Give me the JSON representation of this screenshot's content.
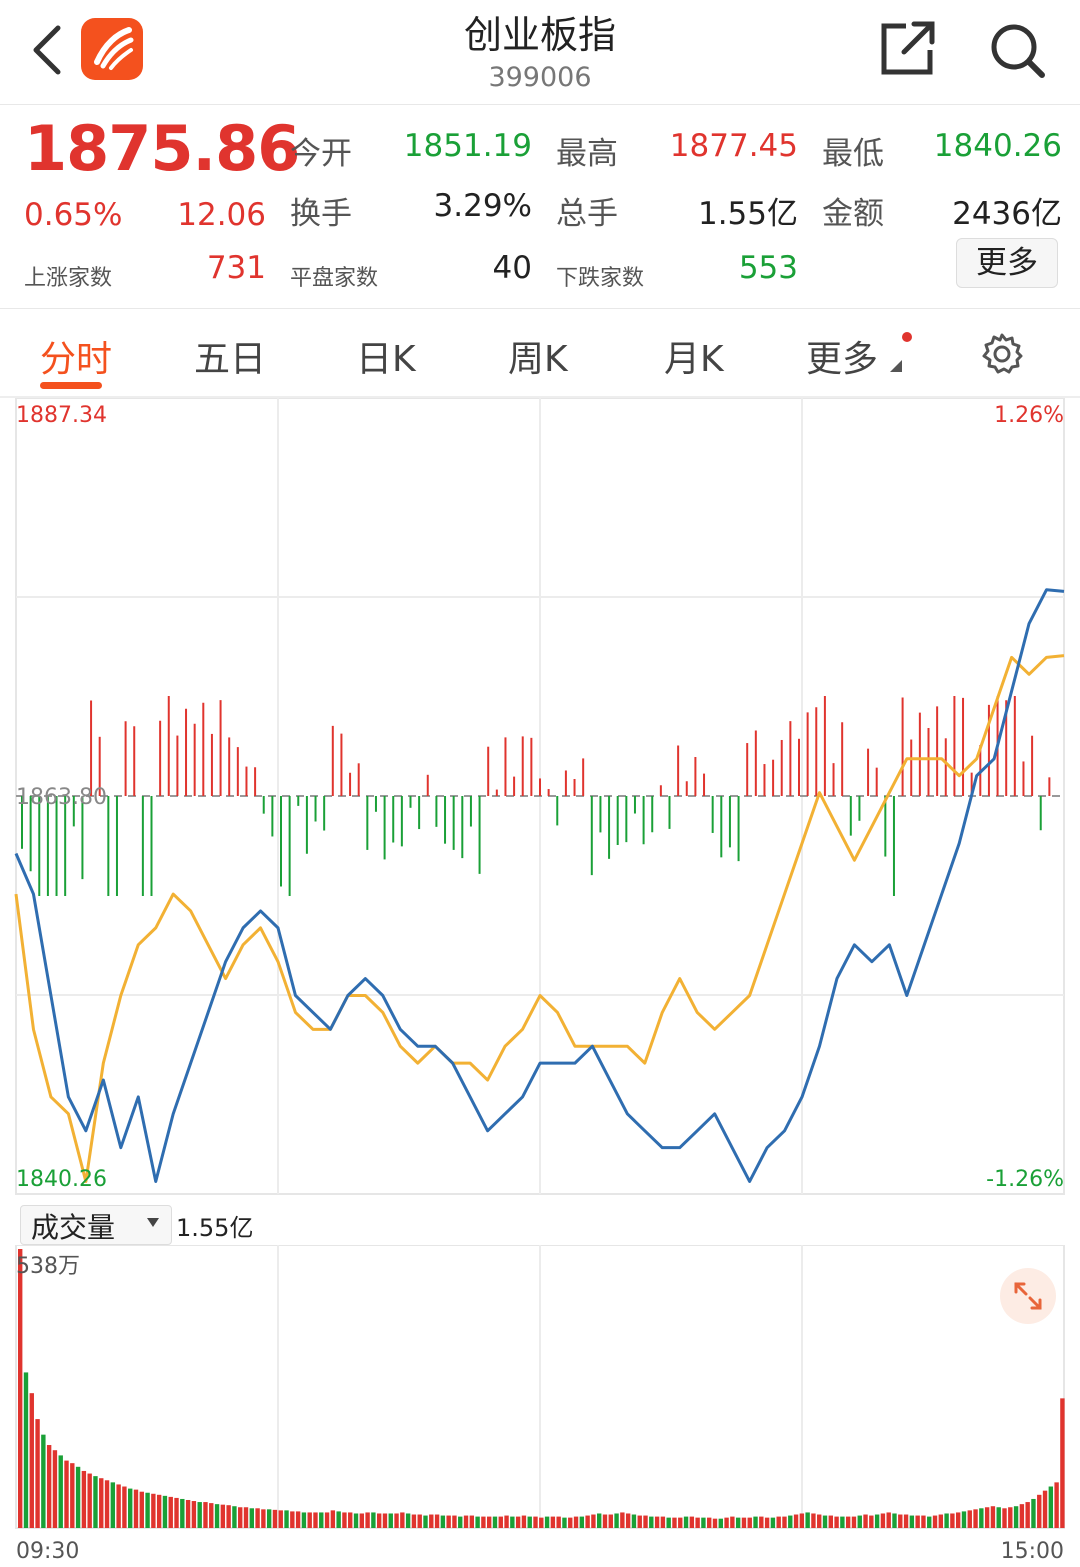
{
  "header": {
    "title": "创业板指",
    "code": "399006"
  },
  "quote": {
    "price": "1875.86",
    "change_pct": "0.65%",
    "change": "12.06",
    "open_label": "今开",
    "open": "1851.19",
    "high_label": "最高",
    "high": "1877.45",
    "low_label": "最低",
    "low": "1840.26",
    "turnover_label": "换手",
    "turnover": "3.29%",
    "total_hands_label": "总手",
    "total_hands": "1.55亿",
    "amount_label": "金额",
    "amount": "2436亿",
    "up_label": "上涨家数",
    "up_count": "731",
    "flat_label": "平盘家数",
    "flat_count": "40",
    "down_label": "下跌家数",
    "down_count": "553",
    "more_label": "更多"
  },
  "tabs": [
    {
      "label": "分时"
    },
    {
      "label": "五日"
    },
    {
      "label": "日K"
    },
    {
      "label": "周K"
    },
    {
      "label": "月K"
    },
    {
      "label": "更多"
    }
  ],
  "colors": {
    "up": "#e0342e",
    "down": "#1aa037",
    "accent": "#f4511e",
    "index_line": "#2f6db0",
    "avg_line": "#f2b134"
  },
  "icons": [
    "back-icon",
    "app-logo-icon",
    "share-icon",
    "search-icon",
    "settings-icon",
    "expand-icon"
  ],
  "chart_data": [
    {
      "type": "line",
      "y_top_label": "1887.34",
      "y_bottom_label": "1840.26",
      "y_mid_label": "1863.80",
      "pct_top_label": "1.26%",
      "pct_bottom_label": "-1.26%",
      "ylim": [
        1840.26,
        1887.34
      ],
      "x": [
        0,
        4,
        8,
        12,
        16,
        20,
        24,
        28,
        32,
        36,
        40,
        44,
        48,
        52,
        56,
        60,
        64,
        68,
        72,
        76,
        80,
        84,
        88,
        92,
        96,
        100,
        104,
        108,
        112,
        116,
        120,
        124,
        128,
        132,
        136,
        140,
        144,
        148,
        152,
        156,
        160,
        164,
        168,
        172,
        176,
        180,
        184,
        188,
        192,
        196,
        200,
        204,
        208,
        212,
        216,
        220,
        224,
        228,
        232,
        236,
        240
      ],
      "series": [
        {
          "values": [
            1860.4,
            1858,
            1852,
            1846,
            1844,
            1847,
            1843,
            1846,
            1841,
            1845,
            1848,
            1851,
            1854,
            1856,
            1857,
            1856,
            1852,
            1851,
            1850,
            1852,
            1853,
            1852,
            1850,
            1849,
            1849,
            1848,
            1846,
            1844,
            1845,
            1846,
            1848,
            1848,
            1848,
            1849,
            1847,
            1845,
            1844,
            1843,
            1843,
            1844,
            1845,
            1843,
            1841,
            1843,
            1844,
            1846,
            1849,
            1853,
            1855,
            1854,
            1855,
            1852,
            1855,
            1858,
            1861,
            1865,
            1866,
            1870,
            1874,
            1876,
            1875.9
          ]
        },
        {
          "values": [
            1858,
            1850,
            1846,
            1845,
            1841,
            1848,
            1852,
            1855,
            1856,
            1858,
            1857,
            1855,
            1853,
            1855,
            1856,
            1854,
            1851,
            1850,
            1850,
            1852,
            1852,
            1851,
            1849,
            1848,
            1849,
            1848,
            1848,
            1847,
            1849,
            1850,
            1852,
            1851,
            1849,
            1849,
            1849,
            1849,
            1848,
            1851,
            1853,
            1851,
            1850,
            1851,
            1852,
            1855,
            1858,
            1861,
            1864,
            1862,
            1860,
            1862,
            1864,
            1866,
            1866,
            1866,
            1865,
            1866,
            1869,
            1872,
            1871,
            1872,
            1872.1
          ]
        }
      ]
    },
    {
      "type": "bar",
      "title": "成交量",
      "value_label": "1.55亿",
      "y_max_label": "538万",
      "ylim": [
        0,
        538
      ],
      "x_start_label": "09:30",
      "x_end_label": "15:00",
      "values": [
        538,
        300,
        260,
        210,
        180,
        160,
        150,
        140,
        130,
        125,
        118,
        110,
        105,
        100,
        96,
        92,
        88,
        84,
        80,
        76,
        74,
        70,
        68,
        66,
        64,
        62,
        60,
        58,
        56,
        54,
        52,
        50,
        50,
        48,
        46,
        45,
        44,
        42,
        40,
        40,
        38,
        38,
        36,
        36,
        35,
        34,
        34,
        32,
        32,
        30,
        30,
        30,
        30,
        30,
        34,
        32,
        30,
        30,
        28,
        28,
        30,
        30,
        28,
        28,
        28,
        28,
        30,
        28,
        26,
        26,
        24,
        26,
        26,
        24,
        24,
        24,
        22,
        24,
        24,
        22,
        22,
        22,
        22,
        22,
        24,
        22,
        22,
        24,
        22,
        22,
        20,
        22,
        22,
        22,
        20,
        20,
        22,
        22,
        24,
        26,
        28,
        26,
        26,
        28,
        30,
        28,
        26,
        24,
        24,
        22,
        22,
        22,
        20,
        20,
        20,
        22,
        22,
        20,
        20,
        20,
        18,
        18,
        20,
        22,
        20,
        20,
        20,
        22,
        22,
        20,
        20,
        22,
        22,
        24,
        26,
        28,
        30,
        28,
        26,
        24,
        24,
        22,
        22,
        22,
        22,
        24,
        26,
        24,
        26,
        28,
        30,
        28,
        26,
        26,
        24,
        24,
        24,
        22,
        24,
        26,
        28,
        28,
        30,
        32,
        34,
        36,
        38,
        40,
        42,
        40,
        38,
        40,
        42,
        46,
        50,
        56,
        64,
        72,
        80,
        88,
        250
      ]
    }
  ]
}
